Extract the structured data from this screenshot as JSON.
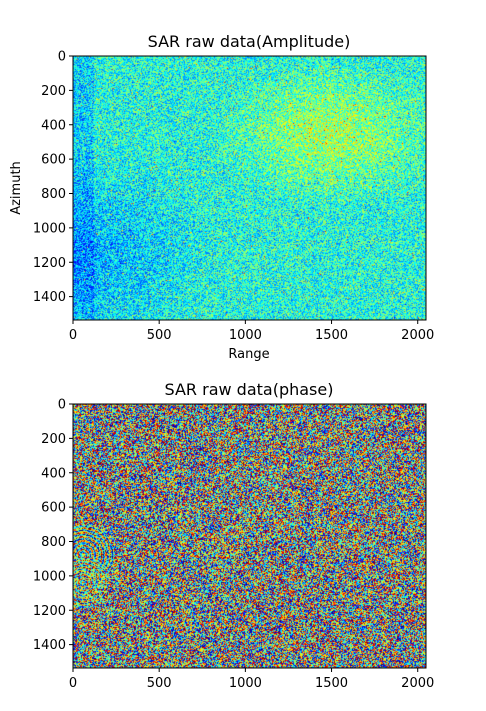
{
  "chart_data": [
    {
      "type": "heatmap",
      "title": "SAR raw data(Amplitude)",
      "xlabel": "Range",
      "ylabel": "Azimuth",
      "xlim": [
        0,
        2048
      ],
      "ylim": [
        1536,
        0
      ],
      "xticks": [
        "0",
        "500",
        "1000",
        "1500",
        "2000"
      ],
      "xtick_values": [
        0,
        500,
        1000,
        1500,
        2000
      ],
      "yticks": [
        "0",
        "200",
        "400",
        "600",
        "800",
        "1000",
        "1200",
        "1400"
      ],
      "ytick_values": [
        0,
        200,
        400,
        600,
        800,
        1000,
        1200,
        1400
      ],
      "colormap": "jet",
      "description_values": {
        "low_region_center": [
          150,
          1150
        ],
        "high_region_center": [
          1500,
          450
        ]
      }
    },
    {
      "type": "heatmap",
      "title": "SAR raw data(phase)",
      "xlabel": "",
      "ylabel": "",
      "xlim": [
        0,
        2048
      ],
      "ylim": [
        1536,
        0
      ],
      "xticks": [
        "0",
        "500",
        "1000",
        "1500",
        "2000"
      ],
      "xtick_values": [
        0,
        500,
        1000,
        1500,
        2000
      ],
      "yticks": [
        "0",
        "200",
        "400",
        "600",
        "800",
        "1000",
        "1200",
        "1400"
      ],
      "ytick_values": [
        0,
        200,
        400,
        600,
        800,
        1000,
        1200,
        1400
      ],
      "colormap": "jet"
    }
  ]
}
